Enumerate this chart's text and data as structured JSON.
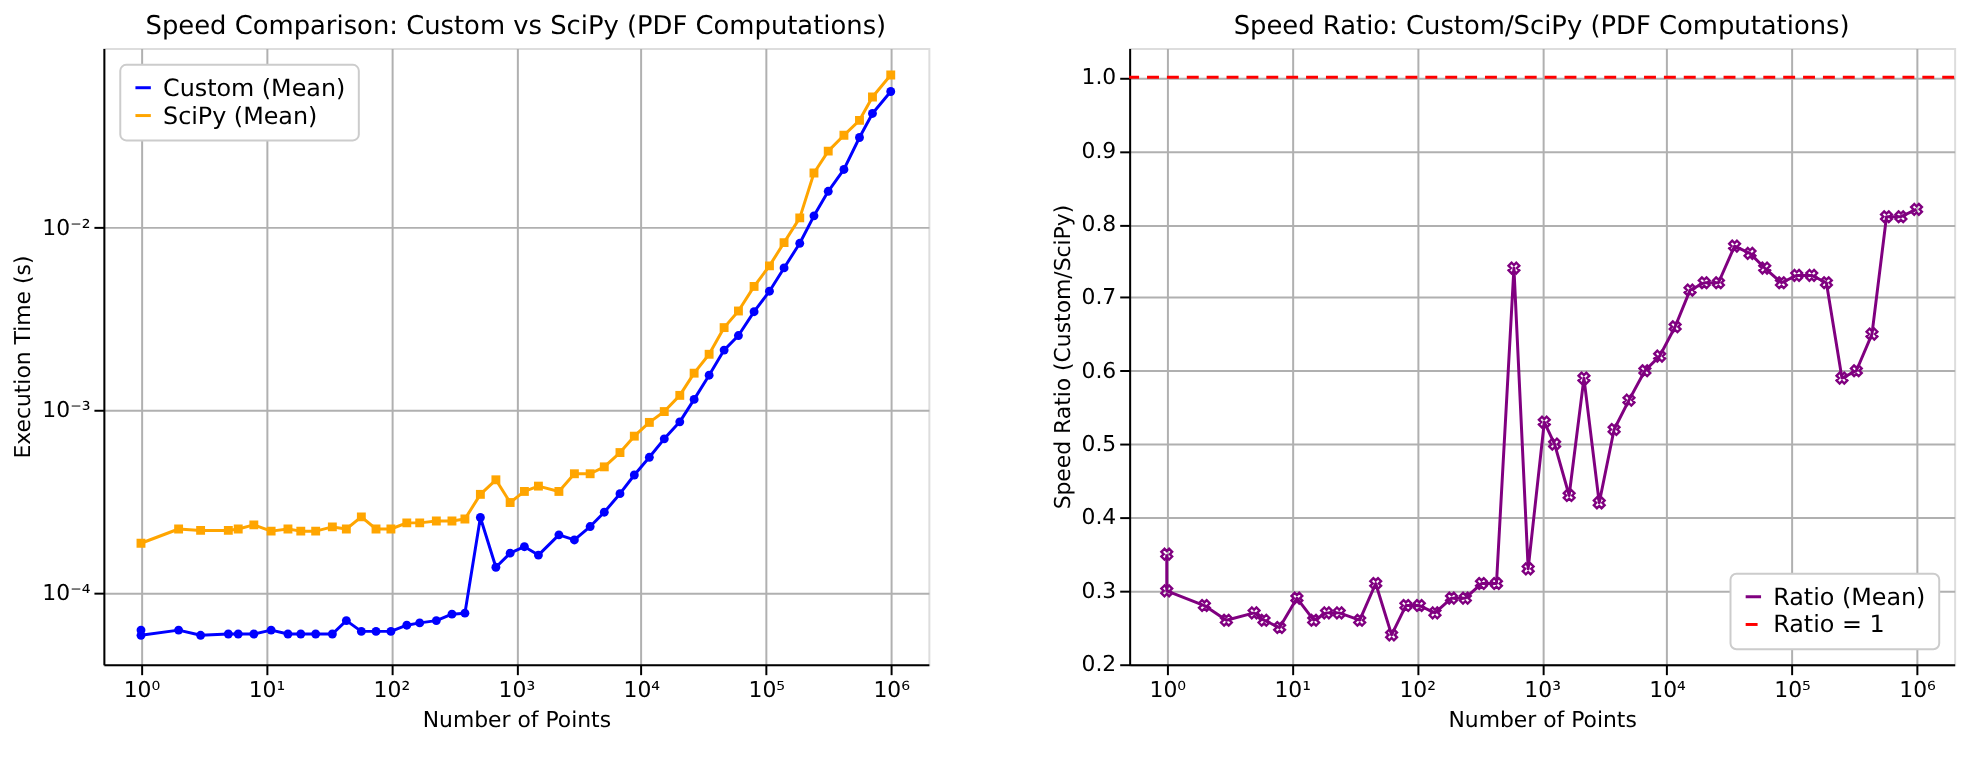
{
  "chart_data": [
    {
      "type": "line",
      "title": "Speed Comparison: Custom vs SciPy (PDF Computations)",
      "xlabel": "Number of Points",
      "ylabel": "Execution Time (s)",
      "log": "xy",
      "grid": true,
      "legend": "top left",
      "xlim": [
        0.5,
        2000000
      ],
      "xticks": [
        {
          "value": 1,
          "label": "10⁰"
        },
        {
          "value": 10,
          "label": "10¹"
        },
        {
          "value": 100,
          "label": "10²"
        },
        {
          "value": 1000,
          "label": "10³"
        },
        {
          "value": 10000,
          "label": "10⁴"
        },
        {
          "value": 100000,
          "label": "10⁵"
        },
        {
          "value": 1000000,
          "label": "10⁶"
        }
      ],
      "ylim": [
        4.1e-05,
        0.096
      ],
      "yticks": [
        {
          "value": 0.0001,
          "label": "10⁻⁴"
        },
        {
          "value": 0.001,
          "label": "10⁻³"
        },
        {
          "value": 0.01,
          "label": "10⁻²"
        }
      ],
      "series": [
        {
          "name": "Custom (Mean)",
          "color": "#0000ff",
          "marker": "circle",
          "line_style": "solid",
          "x": [
            1,
            1,
            2,
            3,
            5,
            6,
            8,
            11,
            15,
            19,
            25,
            34,
            44,
            58,
            76,
            100,
            134,
            170,
            231,
            308,
            391,
            520,
            692,
            900,
            1170,
            1515,
            2210,
            2940,
            3930,
            5100,
            6810,
            8870,
            11700,
            15400,
            20500,
            26700,
            35200,
            46400,
            60400,
            80600,
            107000,
            140000,
            187000,
            243000,
            316000,
            422000,
            562000,
            714000,
            1000000
          ],
          "values": [
            6.3e-05,
            5.9e-05,
            6.3e-05,
            5.9e-05,
            6e-05,
            6e-05,
            6e-05,
            6.3e-05,
            6e-05,
            6e-05,
            6e-05,
            6e-05,
            7.1e-05,
            6.2e-05,
            6.2e-05,
            6.2e-05,
            6.7e-05,
            6.9e-05,
            7.1e-05,
            7.7e-05,
            7.8e-05,
            0.00026,
            0.000139,
            0.000166,
            0.00018,
            0.000162,
            0.000209,
            0.000196,
            0.000232,
            0.000278,
            0.000351,
            0.000444,
            0.000555,
            0.0007,
            0.000867,
            0.00115,
            0.00156,
            0.00214,
            0.00257,
            0.00347,
            0.00449,
            0.00602,
            0.00821,
            0.0116,
            0.0158,
            0.0208,
            0.0311,
            0.0421,
            0.0555
          ]
        },
        {
          "name": "SciPy (Mean)",
          "color": "#ffa500",
          "marker": "square",
          "line_style": "solid",
          "x": [
            1,
            2,
            3,
            5,
            6,
            8,
            11,
            15,
            19,
            25,
            34,
            44,
            58,
            76,
            100,
            134,
            170,
            231,
            308,
            391,
            520,
            692,
            900,
            1170,
            1515,
            2210,
            2940,
            3930,
            5100,
            6810,
            8870,
            11700,
            15400,
            20500,
            26700,
            35200,
            46400,
            60400,
            80600,
            107000,
            140000,
            187000,
            243000,
            316000,
            422000,
            562000,
            714000,
            1000000
          ],
          "values": [
            0.000188,
            0.000225,
            0.000221,
            0.000221,
            0.000225,
            0.000237,
            0.000219,
            0.000225,
            0.000219,
            0.000219,
            0.000231,
            0.000225,
            0.000262,
            0.000225,
            0.000225,
            0.000243,
            0.000243,
            0.000249,
            0.000249,
            0.000255,
            0.000348,
            0.000418,
            0.000314,
            0.000361,
            0.000386,
            0.000361,
            0.000451,
            0.000451,
            0.000492,
            0.000589,
            0.000724,
            0.000861,
            0.000987,
            0.00121,
            0.0016,
            0.00203,
            0.00284,
            0.0035,
            0.00477,
            0.00618,
            0.00828,
            0.0113,
            0.0199,
            0.0262,
            0.032,
            0.0386,
            0.0518,
            0.0683
          ]
        }
      ]
    },
    {
      "type": "line",
      "title": "Speed Ratio: Custom/SciPy (PDF Computations)",
      "xlabel": "Number of Points",
      "ylabel": "Speed Ratio (Custom/SciPy)",
      "log": "x",
      "grid": true,
      "legend": "bottom right",
      "xlim": [
        0.5,
        2000000
      ],
      "xticks": [
        {
          "value": 1,
          "label": "10⁰"
        },
        {
          "value": 10,
          "label": "10¹"
        },
        {
          "value": 100,
          "label": "10²"
        },
        {
          "value": 1000,
          "label": "10³"
        },
        {
          "value": 10000,
          "label": "10⁴"
        },
        {
          "value": 100000,
          "label": "10⁵"
        },
        {
          "value": 1000000,
          "label": "10⁶"
        }
      ],
      "ylim": [
        0.2,
        1.04
      ],
      "yticks": [
        0.2,
        0.3,
        0.4,
        0.5,
        0.6,
        0.7,
        0.8,
        0.9,
        {
          "value": 1.0,
          "label": "1.0"
        }
      ],
      "series": [
        {
          "name": "Ratio (Mean)",
          "color": "#800080",
          "marker": "cross",
          "line_style": "solid",
          "x": [
            1,
            1,
            2,
            3,
            5,
            6,
            8,
            11,
            15,
            19,
            24,
            35,
            47,
            63,
            82,
            105,
            140,
            190,
            245,
            330,
            435,
            600,
            780,
            1050,
            1270,
            1660,
            2180,
            2890,
            3800,
            5000,
            6700,
            8800,
            11700,
            15400,
            20000,
            26000,
            35000,
            46500,
            61000,
            83000,
            110000,
            145000,
            190000,
            253000,
            330000,
            440000,
            575000,
            750000,
            1000000
          ],
          "values": [
            0.35,
            0.3,
            0.28,
            0.26,
            0.27,
            0.26,
            0.25,
            0.29,
            0.26,
            0.27,
            0.27,
            0.26,
            0.31,
            0.24,
            0.28,
            0.28,
            0.27,
            0.29,
            0.29,
            0.31,
            0.31,
            0.74,
            0.33,
            0.53,
            0.5,
            0.43,
            0.59,
            0.42,
            0.52,
            0.56,
            0.6,
            0.62,
            0.66,
            0.71,
            0.72,
            0.72,
            0.77,
            0.76,
            0.74,
            0.72,
            0.73,
            0.73,
            0.72,
            0.59,
            0.6,
            0.65,
            0.81,
            0.81,
            0.82
          ]
        }
      ],
      "ref_lines": [
        {
          "axis": "y",
          "value": 1.0,
          "label": "Ratio = 1",
          "color": "#ff0000",
          "line_style": "dashed"
        }
      ]
    }
  ]
}
